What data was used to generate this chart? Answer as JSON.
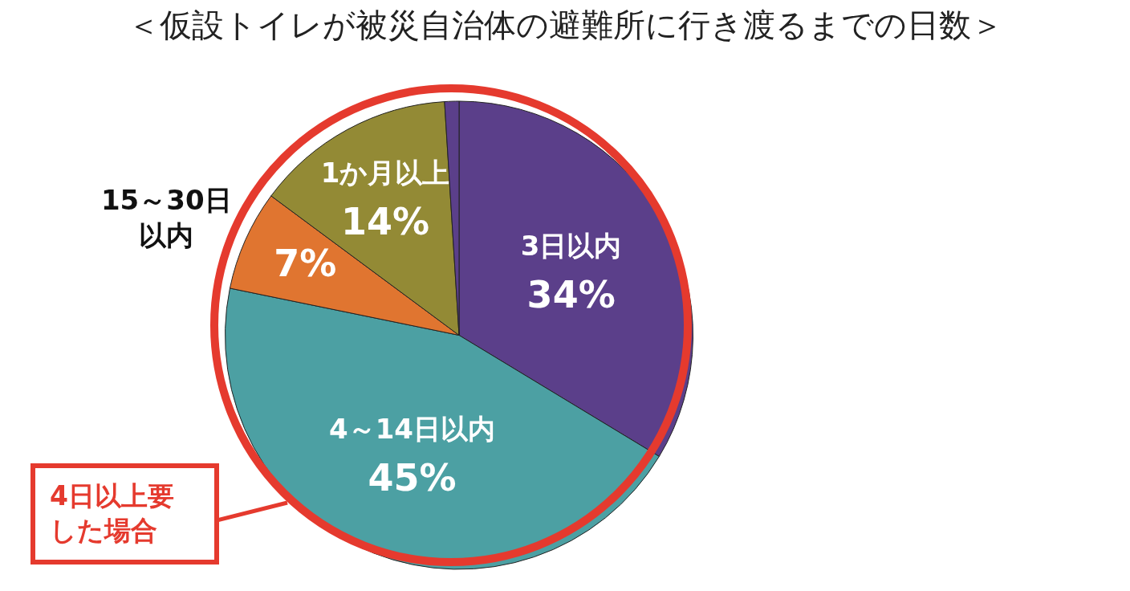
{
  "chart_data": {
    "type": "pie",
    "title": "＜仮設トイレが被災自治体の避難所に行き渡るまでの日数＞",
    "categories": [
      "3日以内",
      "4～14日以内",
      "15～30日以内",
      "1か月以上",
      null
    ],
    "values": [
      34,
      45,
      7,
      14,
      1
    ],
    "colors": [
      "#5b3f8a",
      "#4ca0a3",
      "#e07530",
      "#938a35",
      "#5b3f8a"
    ],
    "value_labels": [
      "34%",
      "45%",
      "7%",
      "14%",
      null
    ],
    "annotations": [
      "4日以上要した場合"
    ],
    "legend": false
  }
}
